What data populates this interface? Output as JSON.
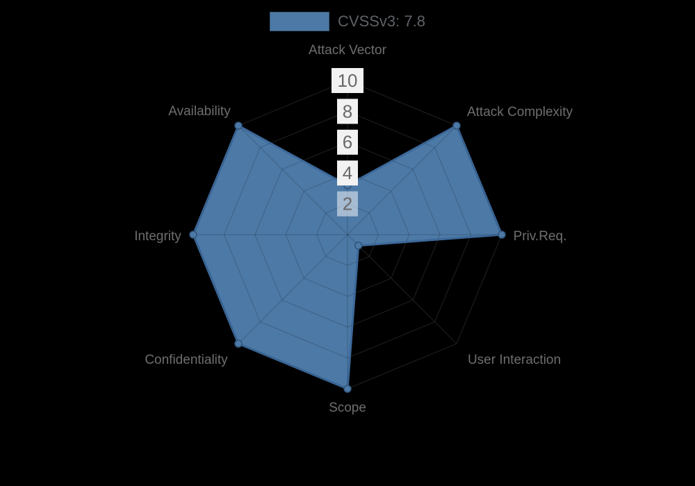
{
  "legend": {
    "label": "CVSSv3: 7.8",
    "swatch_color": "#4d79a6"
  },
  "chart_data": {
    "type": "radar",
    "title": "CVSSv3: 7.8",
    "categories": [
      "Attack Vector",
      "Attack Complexity",
      "Priv.Req.",
      "User Interaction",
      "Scope",
      "Confidentiality",
      "Integrity",
      "Availability"
    ],
    "series": [
      {
        "name": "CVSSv3: 7.8",
        "values": [
          3.2,
          10,
          10,
          1,
          10,
          10,
          10,
          10
        ]
      }
    ],
    "ticks": [
      2,
      4,
      6,
      8,
      10
    ],
    "axis_range": [
      0,
      10
    ],
    "grid": "polygon-web",
    "legend_position": "top",
    "colors": {
      "fill": "#4d79a6",
      "border": "#3c699a",
      "point_fill": "#4d79a6",
      "point_border": "#30547b",
      "grid_on_black": "#1c1c1c",
      "axis_label": "#6e6e6e",
      "tick_text": "#686868",
      "tick_backdrop": "#ffffff"
    }
  }
}
